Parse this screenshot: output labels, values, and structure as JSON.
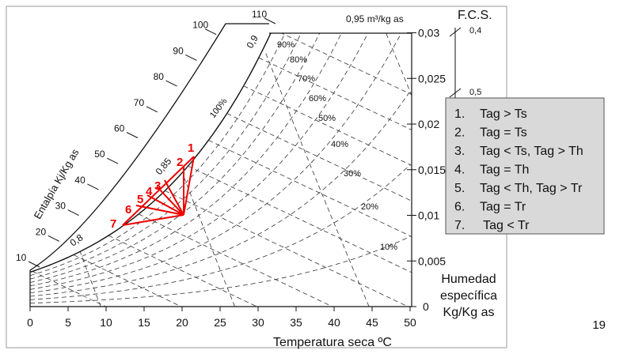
{
  "chart": {
    "x_label": "Temperatura seca ºC",
    "xticks": [
      0,
      5,
      10,
      15,
      20,
      25,
      30,
      35,
      40,
      45,
      50
    ],
    "y_label": [
      "Humedad",
      "específica",
      "Kg/Kg as"
    ],
    "yticks": [
      0,
      {
        "value": 0.005,
        "label": "0,005"
      },
      {
        "value": 0.01,
        "label": "0,01"
      },
      {
        "value": 0.015,
        "label": "0,015"
      },
      {
        "value": 0.02,
        "label": "0,02"
      },
      {
        "value": 0.025,
        "label": "0,025"
      },
      {
        "value": 0.03,
        "label": "0,03"
      }
    ],
    "enthalpy_label": "Entalpía Kj/Kg as",
    "enthalpy_ticks": [
      10,
      20,
      30,
      40,
      50,
      60,
      70,
      80,
      90,
      100,
      110
    ],
    "rh_curves": [
      {
        "value": 10,
        "label": "10%"
      },
      {
        "value": 20,
        "label": "20%"
      },
      {
        "value": 30,
        "label": "30%"
      },
      {
        "value": 40,
        "label": "40%"
      },
      {
        "value": 50,
        "label": "50%"
      },
      {
        "value": 60,
        "label": "60%"
      },
      {
        "value": 70,
        "label": "70%"
      },
      {
        "value": 80,
        "label": "80%"
      },
      {
        "value": 90,
        "label": "90%"
      },
      {
        "value": 100,
        "label": "100%"
      }
    ],
    "volume_lines": [
      {
        "value": 0.8,
        "label": "0,8"
      },
      {
        "value": 0.85,
        "label": "0,85"
      },
      {
        "value": 0.9,
        "label": "0,9"
      },
      {
        "value": 0.95,
        "label": "0,95 m³/kg as"
      }
    ],
    "fcs_label": "F.C.S.",
    "fcs_ticks": [
      "0,4",
      "0,5"
    ],
    "points": [
      "1",
      "2",
      "3",
      "4",
      "5",
      "6",
      "7"
    ]
  },
  "legend": [
    {
      "num": "1.",
      "text": "Tag > Ts"
    },
    {
      "num": "2.",
      "text": "Tag = Ts"
    },
    {
      "num": "3.",
      "text": "Tag < Ts, Tag > Th"
    },
    {
      "num": "4.",
      "text": "Tag = Th"
    },
    {
      "num": "5.",
      "text": "Tag < Th, Tag > Tr"
    },
    {
      "num": "6.",
      "text": "Tag = Tr"
    },
    {
      "num": "7.",
      "text": " Tag < Tr"
    }
  ],
  "page_number": "19"
}
